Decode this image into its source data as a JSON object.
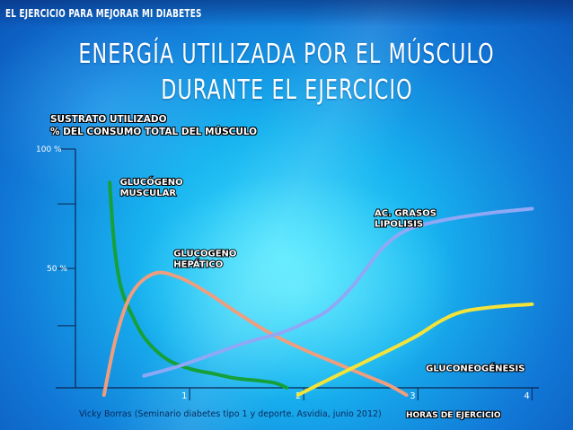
{
  "header": {
    "tag": "EL EJERCICIO PARA MEJORAR MI DIABETES",
    "title_line1": "ENERGÍA UTILIZADA POR EL MÚSCULO",
    "title_line2": "DURANTE EL EJERCICIO"
  },
  "footer": {
    "source": "Vicky Borras (Seminario diabetes tipo 1 y deporte. Asvidia, junio 2012)"
  },
  "colors": {
    "glucogeno_muscular": "#16a03a",
    "glucogeno_hepatico": "#ee9e7e",
    "ac_grasos": "#8fa8f6",
    "gluconeogenesis": "#f3e33a",
    "axis": "#0b2550"
  },
  "chart_data": {
    "type": "line",
    "ylabel_line1": "SUSTRATO UTILIZADO",
    "ylabel_line2": "% DEL CONSUMO TOTAL DEL MÚSCULO",
    "xlabel": "HORAS DE EJERCICIO",
    "xlim": [
      0,
      4.06
    ],
    "ylim": [
      0,
      100
    ],
    "y_ticks": [
      {
        "value": 100,
        "label": "100 %"
      },
      {
        "value": 77,
        "label": ""
      },
      {
        "value": 50,
        "label": "50 %"
      },
      {
        "value": 26,
        "label": ""
      }
    ],
    "x_ticks": [
      {
        "value": 1,
        "label": "1"
      },
      {
        "value": 2,
        "label": "2"
      },
      {
        "value": 3,
        "label": "3"
      },
      {
        "value": 4,
        "label": "4"
      }
    ],
    "series": [
      {
        "name": "GLUCÓGENO MUSCULAR",
        "label_line1": "GLUCÓGENO",
        "label_line2": "MUSCULAR",
        "color_key": "glucogeno_muscular",
        "label_at": [
          0.39,
          85
        ],
        "points": [
          [
            0.3,
            86
          ],
          [
            0.34,
            60
          ],
          [
            0.4,
            42
          ],
          [
            0.5,
            30
          ],
          [
            0.62,
            20
          ],
          [
            0.8,
            12
          ],
          [
            1.0,
            8
          ],
          [
            1.2,
            6
          ],
          [
            1.4,
            4
          ],
          [
            1.6,
            3
          ],
          [
            1.75,
            2
          ],
          [
            1.85,
            0
          ]
        ]
      },
      {
        "name": "GLUCOGENO HEPÁTICO",
        "label_line1": "GLUCOGENO",
        "label_line2": "HEPÁTICO",
        "color_key": "glucogeno_hepatico",
        "label_at": [
          0.86,
          55
        ],
        "points": [
          [
            0.25,
            -3
          ],
          [
            0.36,
            22
          ],
          [
            0.5,
            40
          ],
          [
            0.7,
            48
          ],
          [
            0.92,
            46
          ],
          [
            1.15,
            40
          ],
          [
            1.4,
            32
          ],
          [
            1.7,
            23
          ],
          [
            2.0,
            16
          ],
          [
            2.3,
            10
          ],
          [
            2.55,
            5
          ],
          [
            2.75,
            1
          ],
          [
            2.9,
            -3
          ]
        ]
      },
      {
        "name": "AC. GRASOS LIPOLISIS",
        "label_line1": "AC. GRASOS",
        "label_line2": "LIPOLISIS",
        "color_key": "ac_grasos",
        "label_at": [
          2.62,
          72
        ],
        "points": [
          [
            0.6,
            5
          ],
          [
            0.9,
            9
          ],
          [
            1.2,
            14
          ],
          [
            1.5,
            19
          ],
          [
            1.8,
            23
          ],
          [
            2.0,
            27
          ],
          [
            2.2,
            32
          ],
          [
            2.4,
            41
          ],
          [
            2.55,
            50
          ],
          [
            2.7,
            59
          ],
          [
            2.9,
            66
          ],
          [
            3.2,
            70
          ],
          [
            3.6,
            73
          ],
          [
            4.0,
            75
          ]
        ]
      },
      {
        "name": "GLUCONEOGÉNESIS",
        "label_line1": "GLUCONEOGÉNESIS",
        "label_line2": "",
        "color_key": "gluconeogenesis",
        "label_at": [
          3.07,
          7
        ],
        "points": [
          [
            1.95,
            -3
          ],
          [
            2.2,
            3
          ],
          [
            2.5,
            10
          ],
          [
            2.8,
            17
          ],
          [
            3.0,
            22
          ],
          [
            3.2,
            28
          ],
          [
            3.4,
            32
          ],
          [
            3.7,
            34
          ],
          [
            4.0,
            35
          ]
        ]
      }
    ]
  }
}
